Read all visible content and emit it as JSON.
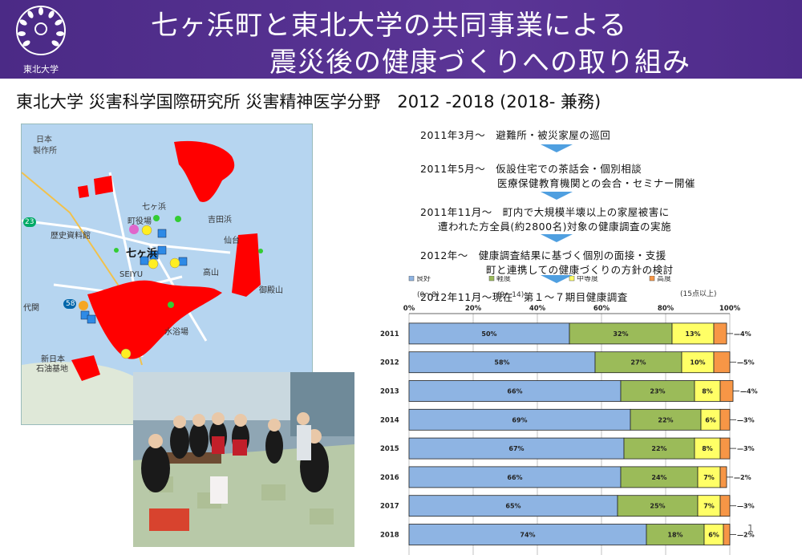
{
  "header": {
    "title_line1": "七ヶ浜町と東北大学の共同事業による",
    "title_line2": "震災後の健康づくりへの取り組み",
    "logo_text": "東北大学"
  },
  "subtitle": "東北大学 災害科学国際研究所 災害精神医学分野　2012 -2018 (2018- 兼務)",
  "timeline": [
    {
      "line1": "2011年3月～　避難所・被災家屋の巡回",
      "line2": ""
    },
    {
      "line1": "2011年5月～　仮設住宅での茶話会・個別相談",
      "line2": "医療保健教育機関との会合・セミナー開催"
    },
    {
      "line1": "2011年11月～　町内で大規模半壊以上の家屋被害に",
      "line2": "遭われた方全員(約2800名)対象の健康調査の実施"
    },
    {
      "line1": "2012年～　健康調査結果に基づく個別の面接・支援",
      "line2": "町と連携しての健康づくりの方針の検討"
    },
    {
      "line1": "2012年11月～現在　第１～７期目健康調査",
      "line2": ""
    }
  ],
  "map_labels": {
    "l1": "日本",
    "l2": "製作所",
    "l3": "七ヶ浜",
    "l4": "町役場",
    "l5": "歴史資料館",
    "l6": "吉田浜",
    "l7": "七ヶ浜",
    "l8": "SEIYU",
    "l9": "高山",
    "l10": "御殿山",
    "l11": "代関",
    "l12": "新日本",
    "l13": "石油基地",
    "l14": "仙台",
    "l15": "水浴場",
    "r23": "23",
    "r58": "58"
  },
  "colors": {
    "header": "#4e2b8a",
    "good": "#8eb4e3",
    "mild": "#9bbb59",
    "moderate": "#ffff66",
    "severe": "#f79646",
    "arrow": "#4f9fe0",
    "flood": "#ff0000",
    "marker_square": "#2e8ae6",
    "marker_star_green": "#33cc33",
    "marker_star_yellow": "#ffee22",
    "marker_pink": "#e066cc"
  },
  "chart_data": {
    "type": "bar",
    "orientation": "horizontal",
    "stacked": true,
    "categories": [
      "2011",
      "2012",
      "2013",
      "2014",
      "2015",
      "2016",
      "2017",
      "2018"
    ],
    "series": [
      {
        "name": "良好",
        "values": [
          50,
          58,
          66,
          69,
          67,
          66,
          65,
          74
        ],
        "labels": [
          "50%",
          "58%",
          "66%",
          "69%",
          "67%",
          "66%",
          "65%",
          "74%"
        ],
        "color": "#8eb4e3"
      },
      {
        "name": "軽度",
        "values": [
          32,
          27,
          23,
          22,
          22,
          24,
          25,
          18
        ],
        "labels": [
          "32%",
          "27%",
          "23%",
          "22%",
          "22%",
          "24%",
          "25%",
          "18%"
        ],
        "color": "#9bbb59"
      },
      {
        "name": "中等度",
        "values": [
          13,
          10,
          8,
          6,
          8,
          7,
          7,
          6
        ],
        "labels": [
          "13%",
          "10%",
          "8%",
          "6%",
          "8%",
          "7%",
          "7%",
          "6%"
        ],
        "color": "#ffff66"
      },
      {
        "name": "高度",
        "values": [
          4,
          5,
          4,
          3,
          3,
          2,
          3,
          2
        ],
        "labels": [
          "4%",
          "5%",
          "4%",
          "3%",
          "3%",
          "2%",
          "3%",
          "2%"
        ],
        "color": "#f79646"
      }
    ],
    "outside_labels": [
      "4%",
      "5%",
      "4%",
      "3%",
      "3%",
      "2%",
      "3%",
      "2%"
    ],
    "xlim": [
      0,
      100
    ],
    "xticks": [
      "0%",
      "20%",
      "40%",
      "60%",
      "80%",
      "100%"
    ],
    "note": "(15点以上)",
    "overlap_text": [
      "(0〜8)",
      "(9〜14)"
    ],
    "legend_position": "top",
    "grid": true
  },
  "page_number": "1"
}
